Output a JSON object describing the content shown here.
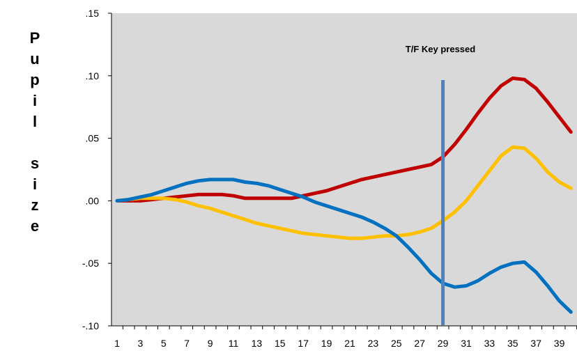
{
  "chart_data": {
    "type": "line",
    "title": "",
    "xlabel": "",
    "ylabel": "Pupil size",
    "ylim": [
      -0.1,
      0.15
    ],
    "yticks": [
      ".15",
      ".10",
      ".05",
      ".00",
      "-.05",
      "-.10"
    ],
    "ytick_values": [
      0.15,
      0.1,
      0.05,
      0.0,
      -0.05,
      -0.1
    ],
    "xticks": [
      "1",
      "3",
      "5",
      "7",
      "9",
      "11",
      "13",
      "15",
      "17",
      "19",
      "21",
      "23",
      "25",
      "27",
      "29",
      "31",
      "33",
      "35",
      "37",
      "39"
    ],
    "x": [
      1,
      2,
      3,
      4,
      5,
      6,
      7,
      8,
      9,
      10,
      11,
      12,
      13,
      14,
      15,
      16,
      17,
      18,
      19,
      20,
      21,
      22,
      23,
      24,
      25,
      26,
      27,
      28,
      29,
      30,
      31,
      32,
      33,
      34,
      35,
      36,
      37,
      38,
      39,
      40
    ],
    "grid": false,
    "background": "#d9d9d9",
    "annotation": {
      "text": "T/F Key pressed",
      "x": 29
    },
    "marker_color": "#4f81bd",
    "series": [
      {
        "color": "#c00000",
        "values": [
          0.0,
          0.0,
          0.0,
          0.001,
          0.002,
          0.003,
          0.004,
          0.005,
          0.005,
          0.005,
          0.004,
          0.002,
          0.002,
          0.002,
          0.002,
          0.002,
          0.004,
          0.006,
          0.008,
          0.011,
          0.014,
          0.017,
          0.019,
          0.021,
          0.023,
          0.025,
          0.027,
          0.029,
          0.035,
          0.045,
          0.057,
          0.07,
          0.082,
          0.092,
          0.098,
          0.097,
          0.09,
          0.079,
          0.067,
          0.055
        ]
      },
      {
        "color": "#ffc000",
        "values": [
          0.0,
          0.001,
          0.002,
          0.002,
          0.002,
          0.001,
          -0.001,
          -0.004,
          -0.006,
          -0.009,
          -0.012,
          -0.015,
          -0.018,
          -0.02,
          -0.022,
          -0.024,
          -0.026,
          -0.027,
          -0.028,
          -0.029,
          -0.03,
          -0.03,
          -0.029,
          -0.028,
          -0.028,
          -0.027,
          -0.025,
          -0.022,
          -0.016,
          -0.009,
          0.0,
          0.012,
          0.024,
          0.036,
          0.043,
          0.042,
          0.034,
          0.023,
          0.015,
          0.01
        ]
      },
      {
        "color": "#0070c0",
        "values": [
          0.0,
          0.001,
          0.003,
          0.005,
          0.008,
          0.011,
          0.014,
          0.016,
          0.017,
          0.017,
          0.017,
          0.015,
          0.014,
          0.012,
          0.009,
          0.006,
          0.003,
          -0.001,
          -0.004,
          -0.007,
          -0.01,
          -0.013,
          -0.017,
          -0.022,
          -0.028,
          -0.037,
          -0.047,
          -0.058,
          -0.066,
          -0.069,
          -0.068,
          -0.064,
          -0.058,
          -0.053,
          -0.05,
          -0.049,
          -0.057,
          -0.068,
          -0.08,
          -0.089
        ]
      }
    ]
  }
}
